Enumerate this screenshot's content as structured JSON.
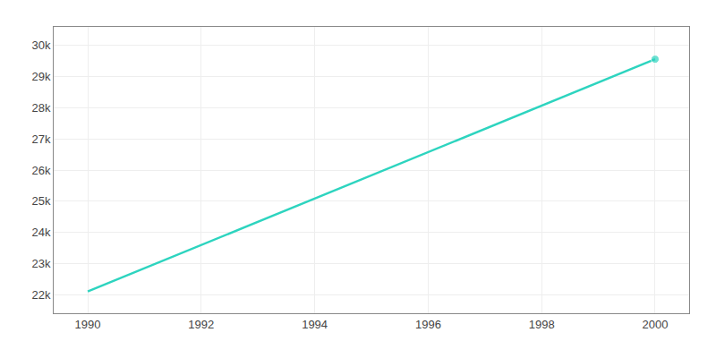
{
  "chart_data": {
    "type": "line",
    "x": [
      1990,
      2000
    ],
    "values": [
      22100,
      29560
    ],
    "color": "#2dd4bf",
    "marker": "circle",
    "xlim": [
      1989.4,
      2000.6
    ],
    "ylim": [
      21400,
      30600
    ],
    "xticks": [
      1990,
      1992,
      1994,
      1996,
      1998,
      2000
    ],
    "yticks": [
      {
        "value": 22000,
        "label": "22k"
      },
      {
        "value": 23000,
        "label": "23k"
      },
      {
        "value": 24000,
        "label": "24k"
      },
      {
        "value": 25000,
        "label": "25k"
      },
      {
        "value": 26000,
        "label": "26k"
      },
      {
        "value": 27000,
        "label": "27k"
      },
      {
        "value": 28000,
        "label": "28k"
      },
      {
        "value": 29000,
        "label": "29k"
      },
      {
        "value": 30000,
        "label": "30k"
      }
    ],
    "grid": true
  }
}
